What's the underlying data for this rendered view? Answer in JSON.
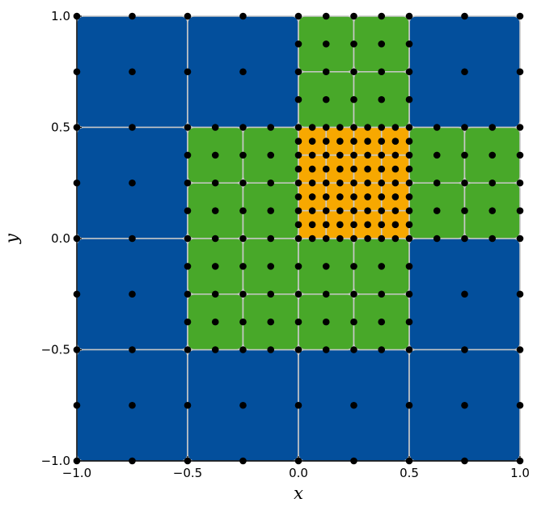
{
  "chart_data": {
    "type": "scatter",
    "title": "",
    "xlabel": "x",
    "ylabel": "y",
    "xlim": [
      -1.0,
      1.0
    ],
    "ylim": [
      -1.0,
      1.0
    ],
    "xticks": [
      "−1.0",
      "−0.5",
      "0.0",
      "0.5",
      "1.0"
    ],
    "yticks": [
      "−1.0",
      "−0.5",
      "0.0",
      "0.5",
      "1.0"
    ],
    "xtick_values": [
      -1.0,
      -0.5,
      0.0,
      0.5,
      1.0
    ],
    "ytick_values": [
      -1.0,
      -0.5,
      0.0,
      0.5,
      1.0
    ],
    "grid": false,
    "legend": "none",
    "colors": {
      "level0": "#034f9c",
      "level1": "#48a829",
      "level2": "#f7a800",
      "cell_border": "#c8c8c8",
      "node": "#000000"
    },
    "cells": [
      {
        "x0": -1.0,
        "y0": 0.5,
        "size": 0.5,
        "level": 0
      },
      {
        "x0": -0.5,
        "y0": 0.5,
        "size": 0.5,
        "level": 0
      },
      {
        "x0": 0.5,
        "y0": 0.5,
        "size": 0.5,
        "level": 0
      },
      {
        "x0": -1.0,
        "y0": 0.0,
        "size": 0.5,
        "level": 0
      },
      {
        "x0": -1.0,
        "y0": -0.5,
        "size": 0.5,
        "level": 0
      },
      {
        "x0": 0.5,
        "y0": -0.5,
        "size": 0.5,
        "level": 0
      },
      {
        "x0": -1.0,
        "y0": -1.0,
        "size": 0.5,
        "level": 0
      },
      {
        "x0": -0.5,
        "y0": -1.0,
        "size": 0.5,
        "level": 0
      },
      {
        "x0": 0.0,
        "y0": -1.0,
        "size": 0.5,
        "level": 0
      },
      {
        "x0": 0.5,
        "y0": -1.0,
        "size": 0.5,
        "level": 0
      },
      {
        "x0": 0.0,
        "y0": 0.75,
        "size": 0.25,
        "level": 1
      },
      {
        "x0": 0.25,
        "y0": 0.75,
        "size": 0.25,
        "level": 1
      },
      {
        "x0": 0.0,
        "y0": 0.5,
        "size": 0.25,
        "level": 1
      },
      {
        "x0": 0.25,
        "y0": 0.5,
        "size": 0.25,
        "level": 1
      },
      {
        "x0": -0.5,
        "y0": 0.25,
        "size": 0.25,
        "level": 1
      },
      {
        "x0": -0.25,
        "y0": 0.25,
        "size": 0.25,
        "level": 1
      },
      {
        "x0": -0.5,
        "y0": 0.0,
        "size": 0.25,
        "level": 1
      },
      {
        "x0": -0.25,
        "y0": 0.0,
        "size": 0.25,
        "level": 1
      },
      {
        "x0": 0.5,
        "y0": 0.25,
        "size": 0.25,
        "level": 1
      },
      {
        "x0": 0.75,
        "y0": 0.25,
        "size": 0.25,
        "level": 1
      },
      {
        "x0": 0.5,
        "y0": 0.0,
        "size": 0.25,
        "level": 1
      },
      {
        "x0": 0.75,
        "y0": 0.0,
        "size": 0.25,
        "level": 1
      },
      {
        "x0": -0.5,
        "y0": -0.25,
        "size": 0.25,
        "level": 1
      },
      {
        "x0": -0.25,
        "y0": -0.25,
        "size": 0.25,
        "level": 1
      },
      {
        "x0": 0.0,
        "y0": -0.25,
        "size": 0.25,
        "level": 1
      },
      {
        "x0": 0.25,
        "y0": -0.25,
        "size": 0.25,
        "level": 1
      },
      {
        "x0": -0.5,
        "y0": -0.5,
        "size": 0.25,
        "level": 1
      },
      {
        "x0": -0.25,
        "y0": -0.5,
        "size": 0.25,
        "level": 1
      },
      {
        "x0": 0.0,
        "y0": -0.5,
        "size": 0.25,
        "level": 1
      },
      {
        "x0": 0.25,
        "y0": -0.5,
        "size": 0.25,
        "level": 1
      },
      {
        "x0": 0.0,
        "y0": 0.375,
        "size": 0.125,
        "level": 2
      },
      {
        "x0": 0.125,
        "y0": 0.375,
        "size": 0.125,
        "level": 2
      },
      {
        "x0": 0.25,
        "y0": 0.375,
        "size": 0.125,
        "level": 2
      },
      {
        "x0": 0.375,
        "y0": 0.375,
        "size": 0.125,
        "level": 2
      },
      {
        "x0": 0.0,
        "y0": 0.25,
        "size": 0.125,
        "level": 2
      },
      {
        "x0": 0.125,
        "y0": 0.25,
        "size": 0.125,
        "level": 2
      },
      {
        "x0": 0.25,
        "y0": 0.25,
        "size": 0.125,
        "level": 2
      },
      {
        "x0": 0.375,
        "y0": 0.25,
        "size": 0.125,
        "level": 2
      },
      {
        "x0": 0.0,
        "y0": 0.125,
        "size": 0.125,
        "level": 2
      },
      {
        "x0": 0.125,
        "y0": 0.125,
        "size": 0.125,
        "level": 2
      },
      {
        "x0": 0.25,
        "y0": 0.125,
        "size": 0.125,
        "level": 2
      },
      {
        "x0": 0.375,
        "y0": 0.125,
        "size": 0.125,
        "level": 2
      },
      {
        "x0": 0.0,
        "y0": 0.0,
        "size": 0.125,
        "level": 2
      },
      {
        "x0": 0.125,
        "y0": 0.0,
        "size": 0.125,
        "level": 2
      },
      {
        "x0": 0.25,
        "y0": 0.0,
        "size": 0.125,
        "level": 2
      },
      {
        "x0": 0.375,
        "y0": 0.0,
        "size": 0.125,
        "level": 2
      }
    ],
    "node_rule": "4 corners, 4 edge midpoints and centre of every cell; duplicates merged"
  }
}
